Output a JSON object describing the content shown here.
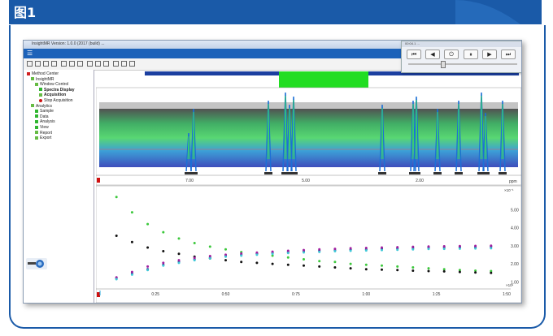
{
  "header": {
    "title": "图1",
    "color": "#1a5aa8"
  },
  "window": {
    "title": "InsightMR Version: 1.0.0 (2017 (build) ...",
    "tree": [
      {
        "label": "Method Center",
        "indent": 0,
        "icon": "red"
      },
      {
        "label": "InsightMR",
        "indent": 1,
        "icon": "wand"
      },
      {
        "label": "Window Control",
        "indent": 2,
        "icon": "wand"
      },
      {
        "label": "Spectra Display",
        "indent": 3,
        "icon": "green",
        "bold": true
      },
      {
        "label": "Acquisition",
        "indent": 3,
        "icon": "wand",
        "bold": true
      },
      {
        "label": "Stop Acquisition",
        "indent": 3,
        "icon": "stop"
      },
      {
        "label": "Analytics",
        "indent": 1,
        "icon": "wand"
      },
      {
        "label": "Sample",
        "indent": 2,
        "icon": "green"
      },
      {
        "label": "Data",
        "indent": 2,
        "icon": "green"
      },
      {
        "label": "Analysis",
        "indent": 2,
        "icon": "green"
      },
      {
        "label": "View",
        "indent": 2,
        "icon": "green"
      },
      {
        "label": "Report",
        "indent": 2,
        "icon": "wand"
      },
      {
        "label": "Export",
        "indent": 2,
        "icon": "wand"
      }
    ],
    "media": {
      "title": "00:04.1 ...",
      "buttons": [
        "⏮",
        "◀",
        "⏻",
        "⏸",
        "▶",
        "⏭"
      ]
    }
  },
  "spectrum": {
    "x_ticks": [
      "7.00",
      "5.00",
      "2.00"
    ],
    "x_unit": "ppm"
  },
  "kinetics": {
    "y_ticks": [
      "1.00",
      "2.00",
      "3.00",
      "4.00",
      "5.00"
    ],
    "y_exp": "×10⁻¹",
    "x_ticks": [
      "0:25",
      "0:50",
      "0:75",
      "1:00",
      "1:25",
      "1:50"
    ],
    "x_exp": "×10¹"
  },
  "chart_data": {
    "type": "scatter",
    "x": [
      0,
      5,
      10,
      15,
      20,
      25,
      30,
      35,
      40,
      45,
      50,
      55,
      60,
      65,
      70,
      75,
      80,
      85,
      90,
      95,
      100,
      105,
      110,
      115,
      120
    ],
    "series": [
      {
        "color": "#3cc83c",
        "values": [
          5.7,
          4.85,
          4.2,
          3.75,
          3.4,
          3.15,
          2.95,
          2.8,
          2.65,
          2.55,
          2.45,
          2.35,
          2.25,
          2.15,
          2.1,
          2.0,
          1.95,
          1.9,
          1.85,
          1.8,
          1.75,
          1.7,
          1.65,
          1.62,
          1.6
        ]
      },
      {
        "color": "#111111",
        "values": [
          3.55,
          3.2,
          2.9,
          2.7,
          2.55,
          2.4,
          2.3,
          2.2,
          2.1,
          2.05,
          2.0,
          1.95,
          1.9,
          1.85,
          1.8,
          1.75,
          1.7,
          1.68,
          1.65,
          1.62,
          1.6,
          1.58,
          1.55,
          1.52,
          1.5
        ]
      },
      {
        "color": "#2a2a8a",
        "values": [
          1.2,
          1.45,
          1.7,
          1.95,
          2.1,
          2.25,
          2.35,
          2.45,
          2.5,
          2.55,
          2.6,
          2.65,
          2.7,
          2.72,
          2.75,
          2.78,
          2.8,
          2.82,
          2.85,
          2.87,
          2.9,
          2.9,
          2.92,
          2.93,
          2.95
        ]
      },
      {
        "color": "#a020a0",
        "values": [
          1.25,
          1.55,
          1.85,
          2.05,
          2.2,
          2.33,
          2.43,
          2.5,
          2.57,
          2.62,
          2.67,
          2.72,
          2.76,
          2.8,
          2.83,
          2.86,
          2.88,
          2.9,
          2.92,
          2.94,
          2.96,
          2.97,
          2.98,
          2.99,
          3.0
        ]
      },
      {
        "color": "#40c8d8",
        "values": [
          1.15,
          1.4,
          1.65,
          1.9,
          2.05,
          2.2,
          2.3,
          2.4,
          2.45,
          2.5,
          2.55,
          2.6,
          2.63,
          2.66,
          2.7,
          2.72,
          2.74,
          2.76,
          2.78,
          2.8,
          2.82,
          2.83,
          2.84,
          2.85,
          2.86
        ]
      }
    ],
    "xlim": [
      -5,
      125
    ],
    "ylim": [
      0.7,
      6.0
    ]
  }
}
